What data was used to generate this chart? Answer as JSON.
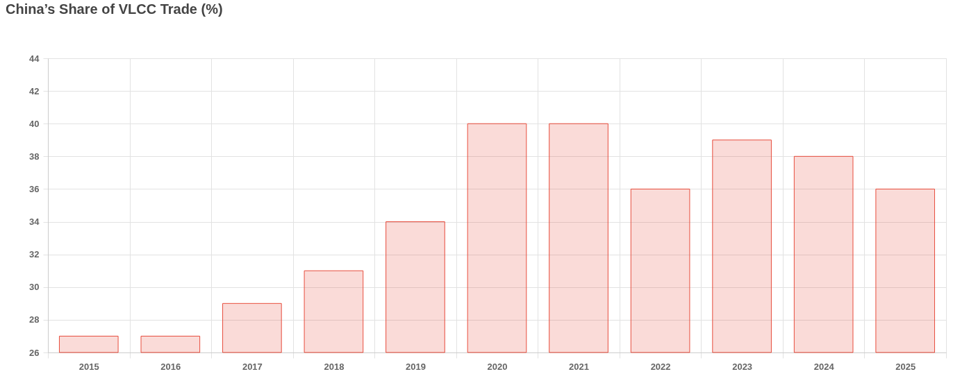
{
  "chart_data": {
    "type": "bar",
    "title": "China’s Share of VLCC Trade (%)",
    "categories": [
      "2015",
      "2016",
      "2017",
      "2018",
      "2019",
      "2020",
      "2021",
      "2022",
      "2023",
      "2024",
      "2025"
    ],
    "values": [
      27,
      27,
      29,
      31,
      34,
      40,
      40,
      36,
      39,
      38,
      36
    ],
    "color": "#e74c3c",
    "ylim": [
      26,
      44
    ],
    "yticks": [
      26,
      28,
      30,
      32,
      34,
      36,
      38,
      40,
      42,
      44
    ],
    "grid": true
  }
}
